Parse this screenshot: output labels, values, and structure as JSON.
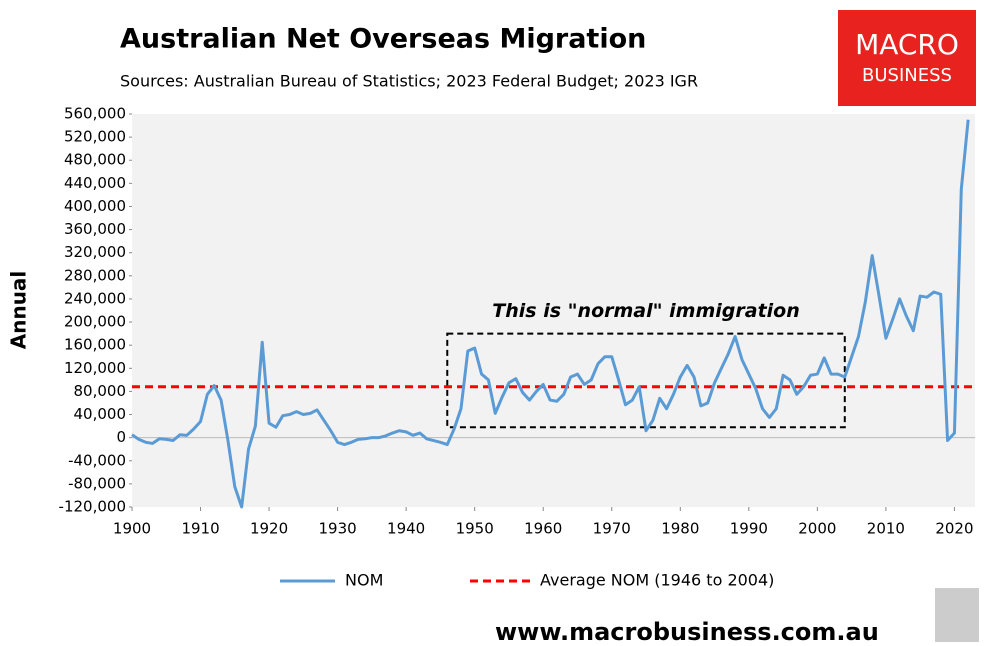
{
  "chart_data": {
    "type": "line",
    "title": "Australian Net Overseas Migration",
    "subtitle": "Sources: Australian Bureau of Statistics; 2023 Federal Budget; 2023 IGR",
    "y_label": "Annual",
    "x": [
      1900,
      1901,
      1902,
      1903,
      1904,
      1905,
      1906,
      1907,
      1908,
      1909,
      1910,
      1911,
      1912,
      1913,
      1914,
      1915,
      1916,
      1917,
      1918,
      1919,
      1920,
      1921,
      1922,
      1923,
      1924,
      1925,
      1926,
      1927,
      1928,
      1929,
      1930,
      1931,
      1932,
      1933,
      1934,
      1935,
      1936,
      1937,
      1938,
      1939,
      1940,
      1941,
      1942,
      1943,
      1944,
      1945,
      1946,
      1947,
      1948,
      1949,
      1950,
      1951,
      1952,
      1953,
      1954,
      1955,
      1956,
      1957,
      1958,
      1959,
      1960,
      1961,
      1962,
      1963,
      1964,
      1965,
      1966,
      1967,
      1968,
      1969,
      1970,
      1971,
      1972,
      1973,
      1974,
      1975,
      1976,
      1977,
      1978,
      1979,
      1980,
      1981,
      1982,
      1983,
      1984,
      1985,
      1986,
      1987,
      1988,
      1989,
      1990,
      1991,
      1992,
      1993,
      1994,
      1995,
      1996,
      1997,
      1998,
      1999,
      2000,
      2001,
      2002,
      2003,
      2004,
      2005,
      2006,
      2007,
      2008,
      2009,
      2010,
      2011,
      2012,
      2013,
      2014,
      2015,
      2016,
      2017,
      2018,
      2019,
      2020,
      2021,
      2022
    ],
    "series": [
      {
        "name": "NOM",
        "color": "#5b9bd5",
        "values": [
          5000,
          -3000,
          -8000,
          -10000,
          -2000,
          -3000,
          -5000,
          5000,
          4000,
          15000,
          28000,
          75000,
          90000,
          65000,
          -5000,
          -85000,
          -120000,
          -20000,
          20000,
          165000,
          25000,
          18000,
          38000,
          40000,
          45000,
          40000,
          42000,
          48000,
          30000,
          12000,
          -8000,
          -12000,
          -8000,
          -3000,
          -2000,
          0,
          0,
          3000,
          8000,
          12000,
          10000,
          4000,
          8000,
          -2000,
          -5000,
          -8000,
          -12000,
          15000,
          50000,
          150000,
          155000,
          110000,
          100000,
          42000,
          70000,
          95000,
          102000,
          78000,
          65000,
          80000,
          92000,
          65000,
          63000,
          75000,
          105000,
          110000,
          92000,
          100000,
          128000,
          140000,
          140000,
          100000,
          57000,
          65000,
          88000,
          12000,
          30000,
          68000,
          50000,
          75000,
          105000,
          125000,
          105000,
          55000,
          60000,
          95000,
          120000,
          145000,
          175000,
          135000,
          110000,
          85000,
          50000,
          35000,
          50000,
          108000,
          100000,
          75000,
          88000,
          108000,
          110000,
          138000,
          110000,
          110000,
          105000,
          140000,
          175000,
          235000,
          315000,
          245000,
          172000,
          205000,
          240000,
          210000,
          185000,
          245000,
          243000,
          252000,
          248000,
          -5000,
          8000,
          430000,
          550000
        ]
      }
    ],
    "reference_line": {
      "name": "Average NOM (1946 to 2004)",
      "value": 88000,
      "color": "#ff0000"
    },
    "annotation": {
      "text": "This is \"normal\" immigration",
      "xlim": [
        1946,
        2004
      ],
      "ylim": [
        18000,
        180000
      ]
    },
    "xlim": [
      1900,
      2023
    ],
    "xticks": [
      1900,
      1910,
      1920,
      1930,
      1940,
      1950,
      1960,
      1970,
      1980,
      1990,
      2000,
      2010,
      2020
    ],
    "ylim": [
      -120000,
      560000
    ],
    "yticks": [
      {
        "value": -120000,
        "label": "-120,000"
      },
      {
        "value": -80000,
        "label": "-80,000"
      },
      {
        "value": -40000,
        "label": "-40,000"
      },
      0,
      {
        "value": 40000,
        "label": "40,000"
      },
      {
        "value": 80000,
        "label": "80,000"
      },
      {
        "value": 120000,
        "label": "120,000"
      },
      {
        "value": 160000,
        "label": "160,000"
      },
      {
        "value": 200000,
        "label": "200,000"
      },
      {
        "value": 240000,
        "label": "240,000"
      },
      {
        "value": 280000,
        "label": "280,000"
      },
      {
        "value": 320000,
        "label": "320,000"
      },
      {
        "value": 360000,
        "label": "360,000"
      },
      {
        "value": 400000,
        "label": "400,000"
      },
      {
        "value": 440000,
        "label": "440,000"
      },
      {
        "value": 480000,
        "label": "480,000"
      },
      {
        "value": 520000,
        "label": "520,000"
      },
      {
        "value": 560000,
        "label": "560,000"
      }
    ],
    "grid": false,
    "legend": "bottom"
  },
  "branding": {
    "logo_top": "MACRO",
    "logo_bottom": "BUSINESS",
    "url": "www.macrobusiness.com.au"
  }
}
